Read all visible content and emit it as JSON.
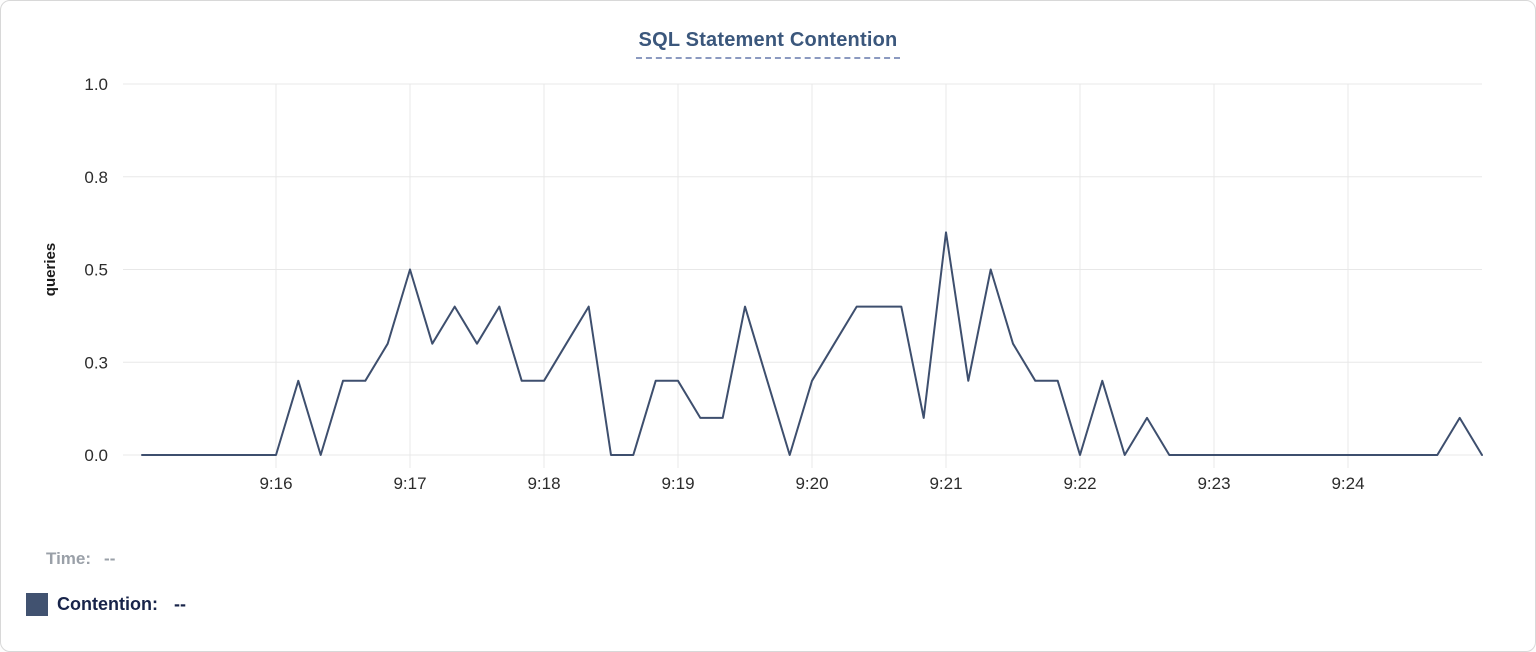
{
  "chart_data": {
    "type": "line",
    "title": "SQL Statement Contention",
    "xlabel": "",
    "ylabel": "queries",
    "ylim": [
      0,
      1.0
    ],
    "y_ticks": [
      {
        "value": 0.0,
        "label": "0.0"
      },
      {
        "value": 0.25,
        "label": "0.3"
      },
      {
        "value": 0.5,
        "label": "0.5"
      },
      {
        "value": 0.75,
        "label": "0.8"
      },
      {
        "value": 1.0,
        "label": "1.0"
      }
    ],
    "x_ticks": [
      "9:16",
      "9:17",
      "9:18",
      "9:19",
      "9:20",
      "9:21",
      "9:22",
      "9:23",
      "9:24"
    ],
    "x_start": "9:15:00",
    "x_end": "9:25:00",
    "interval_seconds": 10,
    "grid": true,
    "legend_position": "bottom-left",
    "series": [
      {
        "name": "Contention",
        "color": "#3e4f6e",
        "start_time": "9:15:00",
        "values": [
          0,
          0,
          0,
          0,
          0,
          0,
          0,
          0.2,
          0,
          0.2,
          0.2,
          0.3,
          0.5,
          0.3,
          0.4,
          0.3,
          0.4,
          0.2,
          0.2,
          0.3,
          0.4,
          0,
          0,
          0.2,
          0.2,
          0.1,
          0.1,
          0.4,
          0.2,
          0,
          0.2,
          0.3,
          0.4,
          0.4,
          0.4,
          0.1,
          0.6,
          0.2,
          0.5,
          0.3,
          0.2,
          0.2,
          0,
          0.2,
          0,
          0.1,
          0,
          0,
          0,
          0,
          0,
          0,
          0,
          0,
          0,
          0,
          0,
          0,
          0,
          0.1,
          0
        ]
      }
    ]
  },
  "legend": {
    "time_label": "Time:",
    "time_value": "--",
    "contention_label": "Contention:",
    "contention_value": "--"
  },
  "colors": {
    "line": "#3e4f6e",
    "legend_swatch": "#415270",
    "title": "#3b577c",
    "title_underline": "#8b9ac0",
    "grid": "#e8e8e8",
    "tick_text": "#2c2c2c",
    "axis_label_text": "#1a1a1a",
    "legend_time_text": "#9aa0a8",
    "legend_contention_text": "#18244a"
  }
}
